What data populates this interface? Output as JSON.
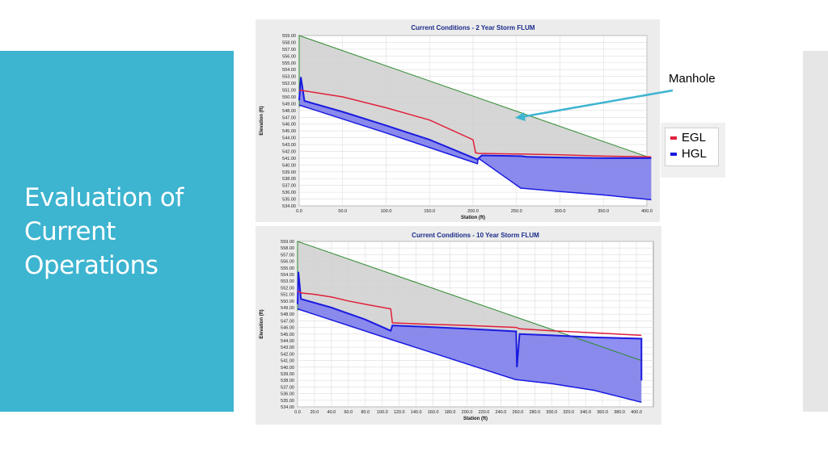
{
  "slide": {
    "title_lines": [
      "Evaluation of",
      "Current",
      "Operations"
    ],
    "annotation": "Manhole",
    "colors": {
      "panel": "#3db4d0",
      "egl": "#e0203a",
      "hgl": "#1a1ae0",
      "ground": "#2e8b2e",
      "hgl_fill": "#7c7cf0"
    }
  },
  "legend": [
    {
      "label": "EGL",
      "color": "#e0203a"
    },
    {
      "label": "HGL",
      "color": "#1a1ae0"
    }
  ],
  "chart_data": [
    {
      "type": "line",
      "title": "Current Conditions - 2 Year Storm FLUM",
      "xlabel": "Station (ft)",
      "ylabel": "Elevation (ft)",
      "xlim": [
        0,
        400
      ],
      "ylim": [
        534,
        559
      ],
      "xticks": [
        "0.0",
        "50.0",
        "100.0",
        "150.0",
        "200.0",
        "250.0",
        "300.0",
        "350.0",
        "400.0"
      ],
      "yticks": [
        "534.00",
        "535.00",
        "536.00",
        "537.00",
        "538.00",
        "539.00",
        "540.00",
        "541.00",
        "542.00",
        "543.00",
        "544.00",
        "545.00",
        "546.00",
        "547.00",
        "548.00",
        "549.00",
        "550.00",
        "551.00",
        "552.00",
        "553.00",
        "554.00",
        "555.00",
        "556.00",
        "557.00",
        "558.00",
        "559.00"
      ],
      "grid": true,
      "series": [
        {
          "name": "Ground",
          "x": [
            0,
            0,
            405,
            405
          ],
          "y": [
            548.5,
            559,
            541,
            541
          ],
          "color": "#2e8b2e"
        },
        {
          "name": "EGL",
          "x": [
            0,
            10,
            50,
            100,
            150,
            200,
            203,
            206,
            260,
            300,
            350,
            405
          ],
          "y": [
            551,
            550.8,
            550,
            548.4,
            546.6,
            543.7,
            541.8,
            541.7,
            541.6,
            541.5,
            541.3,
            541.2
          ],
          "color": "#e0203a"
        },
        {
          "name": "HGL",
          "x": [
            0,
            2,
            6,
            50,
            100,
            150,
            205,
            210,
            255,
            262,
            300,
            350,
            405
          ],
          "y": [
            549.5,
            552.9,
            549.4,
            547.8,
            545.8,
            543.7,
            540.8,
            541.4,
            541.3,
            541.2,
            541.1,
            541.0,
            541.0
          ],
          "color": "#1a1ae0"
        },
        {
          "name": "Pipe Invert",
          "x": [
            0,
            100,
            205,
            206,
            255,
            256,
            300,
            350,
            405
          ],
          "y": [
            548.8,
            544.7,
            540.2,
            541.0,
            536.6,
            536.6,
            536.1,
            535.6,
            534.9
          ],
          "color": "#1a1ae0"
        }
      ]
    },
    {
      "type": "line",
      "title": "Current Conditions - 10 Year Storm FLUM",
      "xlabel": "Station (ft)",
      "ylabel": "Elevation (ft)",
      "xlim": [
        0,
        420
      ],
      "ylim": [
        534,
        559
      ],
      "xticks": [
        "0.0",
        "20.0",
        "40.0",
        "60.0",
        "80.0",
        "100.0",
        "120.0",
        "140.0",
        "160.0",
        "180.0",
        "200.0",
        "220.0",
        "240.0",
        "260.0",
        "280.0",
        "300.0",
        "320.0",
        "340.0",
        "360.0",
        "380.0",
        "400.0"
      ],
      "yticks": [
        "534.00",
        "535.00",
        "536.00",
        "537.00",
        "538.00",
        "539.00",
        "540.00",
        "541.00",
        "542.00",
        "543.00",
        "544.00",
        "545.00",
        "546.00",
        "547.00",
        "548.00",
        "549.00",
        "550.00",
        "551.00",
        "552.00",
        "553.00",
        "554.00",
        "555.00",
        "556.00",
        "557.00",
        "558.00",
        "559.00"
      ],
      "grid": true,
      "series": [
        {
          "name": "Ground",
          "x": [
            0,
            0,
            406,
            406
          ],
          "y": [
            548.5,
            559,
            541,
            541
          ],
          "color": "#2e8b2e"
        },
        {
          "name": "EGL",
          "x": [
            0,
            5,
            20,
            40,
            60,
            80,
            110,
            112,
            150,
            200,
            258,
            262,
            300,
            350,
            406
          ],
          "y": [
            551.5,
            551.2,
            551.0,
            550.6,
            550.0,
            549.5,
            548.8,
            546.7,
            546.5,
            546.3,
            546.0,
            545.8,
            545.5,
            545.2,
            544.8
          ],
          "color": "#e0203a"
        },
        {
          "name": "HGL",
          "x": [
            0,
            1,
            4,
            40,
            80,
            110,
            112,
            150,
            200,
            258,
            259,
            262,
            300,
            350,
            406,
            406
          ],
          "y": [
            549.5,
            554.4,
            550.3,
            549.0,
            547.2,
            545.5,
            546.3,
            546.1,
            545.8,
            545.4,
            540.0,
            545.0,
            544.8,
            544.5,
            544.3,
            538.0
          ],
          "color": "#1a1ae0"
        },
        {
          "name": "Pipe Invert",
          "x": [
            0,
            110,
            258,
            259,
            300,
            350,
            406
          ],
          "y": [
            548.8,
            544.2,
            538.1,
            538.1,
            537.5,
            536.5,
            534.7
          ],
          "color": "#1a1ae0"
        }
      ]
    }
  ]
}
